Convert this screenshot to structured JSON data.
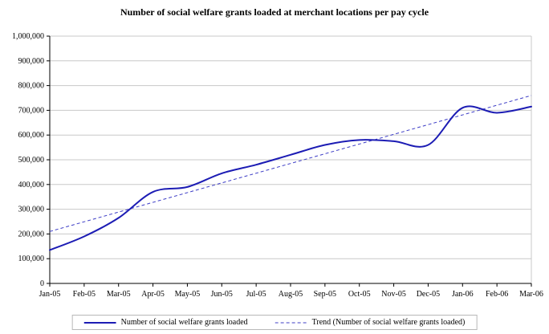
{
  "chart_data": {
    "type": "line",
    "title": "Number of social welfare grants loaded at merchant locations per pay cycle",
    "categories": [
      "Jan-05",
      "Feb-05",
      "Mar-05",
      "Apr-05",
      "May-05",
      "Jun-05",
      "Jul-05",
      "Aug-05",
      "Sep-05",
      "Oct-05",
      "Nov-05",
      "Dec-05",
      "Jan-06",
      "Feb-06",
      "Mar-06"
    ],
    "series": [
      {
        "name": "Number of social welfare grants loaded",
        "style": "solid",
        "values": [
          135000,
          190000,
          265000,
          370000,
          390000,
          445000,
          480000,
          520000,
          560000,
          580000,
          575000,
          560000,
          710000,
          690000,
          715000
        ]
      },
      {
        "name": "Trend (Number of social welfare grants loaded)",
        "style": "dashed",
        "trend_endpoints": [
          210000,
          760000
        ]
      }
    ],
    "xlabel": "",
    "ylabel": "",
    "ylim": [
      0,
      1000000
    ],
    "ytick_step": 100000,
    "grid": "horizontal",
    "legend_position": "bottom",
    "colors": {
      "series_line": "#1c1cb4",
      "trend_line": "#3d3dc6",
      "gridline": "#c8c8c8",
      "axis": "#000000",
      "plot_border": "#c8c8c8"
    }
  }
}
